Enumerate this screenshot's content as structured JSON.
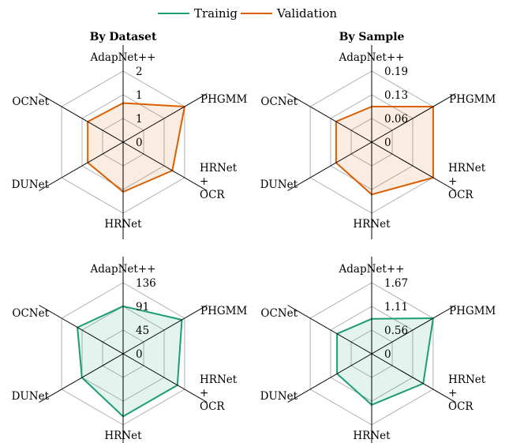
{
  "legend": [
    {
      "label": "Trainig",
      "color": "#1b9e77"
    },
    {
      "label": "Validation",
      "color": "#d95f02"
    }
  ],
  "titles": {
    "by_dataset": "By Dataset",
    "by_sample": "By Sample"
  },
  "chart_data": [
    {
      "type": "radar",
      "title": "By Dataset",
      "series": [
        {
          "name": "Validation",
          "values": [
            1.1,
            2.0,
            1.6,
            1.4,
            1.15,
            1.15
          ]
        }
      ],
      "categories": [
        "AdapNet++",
        "PHGMM",
        "HRNet + OCR",
        "HRNet",
        "DUNet",
        "OCNet"
      ],
      "ticks": [
        "0",
        "1",
        "1",
        "2"
      ],
      "rmax": 2,
      "color": "#d95f02"
    },
    {
      "type": "radar",
      "title": "By Sample",
      "series": [
        {
          "name": "Validation",
          "values": [
            0.095,
            0.19,
            0.19,
            0.14,
            0.11,
            0.11
          ]
        }
      ],
      "categories": [
        "AdapNet++",
        "PHGMM",
        "HRNet + OCR",
        "HRNet",
        "DUNet",
        "OCNet"
      ],
      "ticks": [
        "0",
        "0.06",
        "0.13",
        "0.19"
      ],
      "rmax": 0.19,
      "color": "#d95f02"
    },
    {
      "type": "radar",
      "title": "",
      "series": [
        {
          "name": "Trainig",
          "values": [
            91,
            130,
            120,
            120,
            91,
            101
          ]
        }
      ],
      "categories": [
        "AdapNet++",
        "PHGMM",
        "HRNet + OCR",
        "HRNet",
        "DUNet",
        "OCNet"
      ],
      "ticks": [
        "0",
        "45",
        "91",
        "136"
      ],
      "rmax": 136,
      "color": "#1b9e77"
    },
    {
      "type": "radar",
      "title": "",
      "series": [
        {
          "name": "Trainig",
          "values": [
            0.82,
            1.67,
            1.4,
            1.2,
            0.94,
            0.94
          ]
        }
      ],
      "categories": [
        "AdapNet++",
        "PHGMM",
        "HRNet + OCR",
        "HRNet",
        "DUNet",
        "OCNet"
      ],
      "ticks": [
        "0",
        "0.56",
        "1.11",
        "1.67"
      ],
      "rmax": 1.67,
      "color": "#1b9e77"
    }
  ]
}
